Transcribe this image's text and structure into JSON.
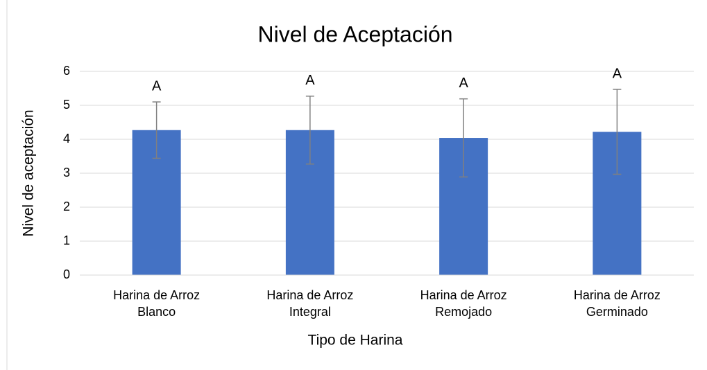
{
  "chart_data": {
    "type": "bar",
    "title": "Nivel de Aceptación",
    "x_label": "Tipo de Harina",
    "y_label": "Nivel de aceptación",
    "categories": [
      [
        "Harina de Arroz",
        "Blanco"
      ],
      [
        "Harina de Arroz",
        "Integral"
      ],
      [
        "Harina de Arroz",
        "Remojado"
      ],
      [
        "Harina de Arroz",
        "Germinado"
      ]
    ],
    "values": [
      4.27,
      4.27,
      4.04,
      4.22
    ],
    "errors": [
      0.83,
      1.0,
      1.15,
      1.25
    ],
    "annotations": [
      "A",
      "A",
      "A",
      "A"
    ],
    "color": "#4472c4",
    "error_color": "#808080",
    "ylim": [
      0,
      6
    ],
    "yticks": [
      0,
      1,
      2,
      3,
      4,
      5,
      6
    ],
    "grid": true
  }
}
